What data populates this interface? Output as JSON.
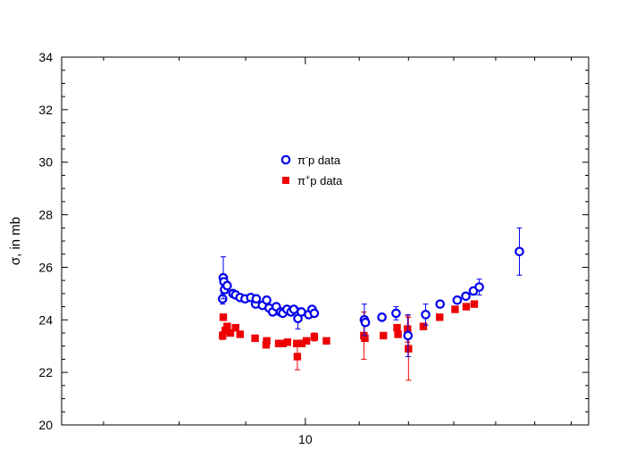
{
  "chart_data": {
    "type": "scatter",
    "ylabel": "σ, in mb",
    "xscale": "log",
    "xlim": [
      6.5,
      16.5
    ],
    "ylim": [
      20,
      34
    ],
    "yticks": [
      20,
      22,
      24,
      26,
      28,
      30,
      32,
      34
    ],
    "xticks": [
      {
        "value": 10,
        "label": "10"
      }
    ],
    "legend_position": "upper-center",
    "series": [
      {
        "name": "π⁻p data",
        "legend_main": "π",
        "legend_sup": "-",
        "legend_rest": "p data",
        "marker": "open-circle",
        "color": "#0000ee",
        "points": [
          {
            "x": 8.64,
            "y": 24.8,
            "err": 0.2
          },
          {
            "x": 8.65,
            "y": 25.6,
            "err": 0.8
          },
          {
            "x": 8.66,
            "y": 25.45,
            "err": 0.15
          },
          {
            "x": 8.67,
            "y": 25.15,
            "err": 0.15
          },
          {
            "x": 8.71,
            "y": 25.3,
            "err": 0.15
          },
          {
            "x": 8.8,
            "y": 25.0,
            "err": 0.1
          },
          {
            "x": 8.84,
            "y": 24.95,
            "err": 0.1
          },
          {
            "x": 8.91,
            "y": 24.85,
            "err": 0.1
          },
          {
            "x": 8.99,
            "y": 24.8,
            "err": 0.1
          },
          {
            "x": 9.08,
            "y": 24.85,
            "err": 0.1
          },
          {
            "x": 9.16,
            "y": 24.6,
            "err": 0.1
          },
          {
            "x": 9.17,
            "y": 24.8,
            "err": 0.15
          },
          {
            "x": 9.27,
            "y": 24.55,
            "err": 0.1
          },
          {
            "x": 9.34,
            "y": 24.75,
            "err": 0.1
          },
          {
            "x": 9.38,
            "y": 24.45,
            "err": 0.1
          },
          {
            "x": 9.44,
            "y": 24.3,
            "err": 0.1
          },
          {
            "x": 9.5,
            "y": 24.5,
            "err": 0.1
          },
          {
            "x": 9.57,
            "y": 24.3,
            "err": 0.1
          },
          {
            "x": 9.61,
            "y": 24.25,
            "err": 0.1
          },
          {
            "x": 9.68,
            "y": 24.4,
            "err": 0.1
          },
          {
            "x": 9.75,
            "y": 24.3,
            "err": 0.1
          },
          {
            "x": 9.8,
            "y": 24.4,
            "err": 0.1
          },
          {
            "x": 9.87,
            "y": 24.05,
            "err": 0.4
          },
          {
            "x": 9.93,
            "y": 24.3,
            "err": 0.1
          },
          {
            "x": 10.06,
            "y": 24.2,
            "err": 0.1
          },
          {
            "x": 10.12,
            "y": 24.4,
            "err": 0.1
          },
          {
            "x": 10.16,
            "y": 24.25,
            "err": 0.1
          },
          {
            "x": 11.1,
            "y": 24.0,
            "err": 0.6
          },
          {
            "x": 11.12,
            "y": 23.9,
            "err": 0.1
          },
          {
            "x": 11.45,
            "y": 24.1,
            "err": 0.1
          },
          {
            "x": 11.74,
            "y": 24.25,
            "err": 0.25
          },
          {
            "x": 11.99,
            "y": 23.4,
            "err": 0.8
          },
          {
            "x": 12.37,
            "y": 24.2,
            "err": 0.4
          },
          {
            "x": 12.69,
            "y": 24.6,
            "err": 0.1
          },
          {
            "x": 13.08,
            "y": 24.75,
            "err": 0.1
          },
          {
            "x": 13.28,
            "y": 24.9,
            "err": 0.1
          },
          {
            "x": 13.46,
            "y": 25.1,
            "err": 0.15
          },
          {
            "x": 13.6,
            "y": 25.25,
            "err": 0.3
          },
          {
            "x": 14.6,
            "y": 26.6,
            "err": 0.9
          }
        ]
      },
      {
        "name": "π⁺p data",
        "legend_main": "π",
        "legend_sup": "+",
        "legend_rest": "p data",
        "marker": "filled-square",
        "color": "#ee0000",
        "points": [
          {
            "x": 8.64,
            "y": 23.4,
            "err": 0.15
          },
          {
            "x": 8.65,
            "y": 24.1,
            "err": 0.1
          },
          {
            "x": 8.68,
            "y": 23.6,
            "err": 0.1
          },
          {
            "x": 8.71,
            "y": 23.75,
            "err": 0.1
          },
          {
            "x": 8.76,
            "y": 23.5,
            "err": 0.1
          },
          {
            "x": 8.84,
            "y": 23.7,
            "err": 0.1
          },
          {
            "x": 8.91,
            "y": 23.45,
            "err": 0.1
          },
          {
            "x": 9.15,
            "y": 23.3,
            "err": 0.1
          },
          {
            "x": 9.33,
            "y": 23.05,
            "err": 0.1
          },
          {
            "x": 9.34,
            "y": 23.2,
            "err": 0.1
          },
          {
            "x": 9.54,
            "y": 23.1,
            "err": 0.1
          },
          {
            "x": 9.61,
            "y": 23.1,
            "err": 0.1
          },
          {
            "x": 9.69,
            "y": 23.15,
            "err": 0.1
          },
          {
            "x": 9.85,
            "y": 23.1,
            "err": 0.1
          },
          {
            "x": 9.86,
            "y": 22.6,
            "err": 0.5
          },
          {
            "x": 9.94,
            "y": 23.1,
            "err": 0.1
          },
          {
            "x": 10.02,
            "y": 23.2,
            "err": 0.1
          },
          {
            "x": 10.16,
            "y": 23.35,
            "err": 0.15
          },
          {
            "x": 10.38,
            "y": 23.2,
            "err": 0.1
          },
          {
            "x": 11.09,
            "y": 23.4,
            "err": 0.9
          },
          {
            "x": 11.11,
            "y": 23.3,
            "err": 0.1
          },
          {
            "x": 11.48,
            "y": 23.4,
            "err": 0.1
          },
          {
            "x": 11.76,
            "y": 23.7,
            "err": 0.1
          },
          {
            "x": 11.78,
            "y": 23.45,
            "err": 0.1
          },
          {
            "x": 11.98,
            "y": 23.65,
            "err": 0.5
          },
          {
            "x": 12.0,
            "y": 22.9,
            "err": 1.2
          },
          {
            "x": 12.32,
            "y": 23.75,
            "err": 0.1
          },
          {
            "x": 12.68,
            "y": 24.1,
            "err": 0.1
          },
          {
            "x": 13.03,
            "y": 24.4,
            "err": 0.1
          },
          {
            "x": 13.29,
            "y": 24.5,
            "err": 0.1
          },
          {
            "x": 13.48,
            "y": 24.6,
            "err": 0.1
          }
        ]
      }
    ]
  }
}
